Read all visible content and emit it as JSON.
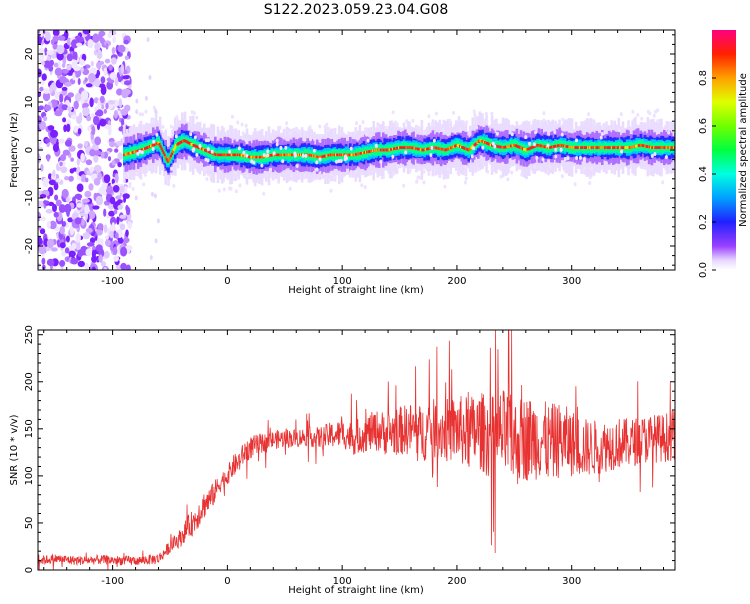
{
  "title": "S122.2023.059.23.04.G08",
  "colors": {
    "snr_line": "#e83232",
    "axis": "#000000"
  },
  "chart_data": [
    {
      "type": "heatmap",
      "title": "S122.2023.059.23.04.G08",
      "xlabel": "Height of straight line (km)",
      "ylabel": "Frequency (Hz)",
      "xlim": [
        -165,
        390
      ],
      "ylim": [
        -25,
        25
      ],
      "xticks": [
        -100,
        0,
        100,
        200,
        300
      ],
      "yticks": [
        -20,
        -10,
        0,
        10,
        20
      ],
      "colorbar": {
        "label": "Normalized spectral amplitude",
        "range": [
          0,
          1
        ],
        "ticks": [
          0.0,
          0.2,
          0.4,
          0.6,
          0.8
        ],
        "colormap": "purple-blue-cyan-green-yellow-orange-red"
      },
      "ridge": {
        "description_values": "peak frequency (Hz) vs height (km)",
        "x": [
          -90,
          -75,
          -60,
          -52,
          -45,
          -38,
          -30,
          -20,
          -10,
          0,
          10,
          20,
          30,
          40,
          50,
          60,
          70,
          80,
          90,
          100,
          110,
          120,
          130,
          140,
          150,
          160,
          170,
          180,
          190,
          200,
          210,
          220,
          230,
          240,
          250,
          260,
          270,
          280,
          290,
          300,
          310,
          320,
          330,
          340,
          350,
          360,
          370,
          380,
          390
        ],
        "y": [
          -1,
          0,
          1.5,
          -2.5,
          1,
          2,
          1,
          0,
          -1,
          -1,
          -1,
          -1.5,
          -1.5,
          -1,
          -1,
          -1,
          -1,
          -1.5,
          -1,
          -1,
          -1,
          -0.5,
          0,
          0,
          0.5,
          0.5,
          0,
          0.5,
          0,
          1,
          0,
          2,
          1,
          0.5,
          1,
          0,
          1,
          0.5,
          1,
          0.5,
          0.5,
          0.5,
          0.5,
          0.5,
          0.5,
          1,
          0.5,
          0.5,
          0.5
        ]
      },
      "noise_region_x": [
        -165,
        -85
      ]
    },
    {
      "type": "line",
      "xlabel": "Height of straight line (km)",
      "ylabel": "SNR (10 * v/v)",
      "xlim": [
        -165,
        390
      ],
      "ylim": [
        0,
        255
      ],
      "xticks": [
        -100,
        0,
        100,
        200,
        300
      ],
      "yticks": [
        0,
        50,
        100,
        150,
        200,
        250
      ],
      "series": [
        {
          "x": [
            -165,
            -150,
            -130,
            -110,
            -90,
            -75,
            -60,
            -55,
            -50,
            -45,
            -40,
            -35,
            -30,
            -25,
            -20,
            -15,
            -10,
            -5,
            0,
            5,
            10,
            15,
            20,
            25,
            30,
            40,
            50,
            60,
            70,
            80,
            90,
            100,
            110,
            120,
            130,
            140,
            150,
            160,
            170,
            180,
            190,
            200,
            210,
            220,
            230,
            240,
            250,
            260,
            270,
            280,
            290,
            300,
            310,
            320,
            330,
            340,
            350,
            360,
            370,
            380,
            390
          ],
          "values": [
            10,
            12,
            10,
            11,
            10,
            10,
            12,
            18,
            25,
            30,
            35,
            45,
            50,
            60,
            70,
            75,
            85,
            95,
            100,
            110,
            115,
            125,
            130,
            132,
            135,
            138,
            140,
            140,
            142,
            140,
            143,
            145,
            140,
            145,
            148,
            145,
            148,
            150,
            145,
            150,
            148,
            150,
            145,
            148,
            140,
            145,
            135,
            140,
            140,
            135,
            138,
            135,
            130,
            130,
            132,
            135,
            135,
            138,
            140,
            140,
            145
          ],
          "noise_amplitude": [
            5,
            5,
            5,
            5,
            5,
            5,
            6,
            6,
            7,
            8,
            10,
            12,
            14,
            15,
            15,
            14,
            12,
            10,
            10,
            12,
            12,
            12,
            12,
            12,
            10,
            10,
            10,
            10,
            10,
            12,
            14,
            15,
            18,
            20,
            22,
            24,
            26,
            28,
            30,
            32,
            34,
            36,
            40,
            42,
            45,
            48,
            48,
            46,
            44,
            42,
            40,
            36,
            32,
            30,
            28,
            28,
            26,
            26,
            26,
            26,
            28
          ],
          "peak": {
            "x": 245,
            "value": 255
          }
        }
      ]
    }
  ]
}
